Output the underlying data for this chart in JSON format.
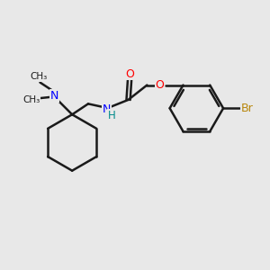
{
  "bg_color": "#e8e8e8",
  "bond_color": "#1a1a1a",
  "N_color": "#0000ff",
  "O_color": "#ff0000",
  "Br_color": "#b8860b",
  "NH_color": "#008b8b",
  "line_width": 1.8,
  "figsize": [
    3.0,
    3.0
  ],
  "dpi": 100,
  "xlim": [
    0,
    10
  ],
  "ylim": [
    0,
    10
  ]
}
